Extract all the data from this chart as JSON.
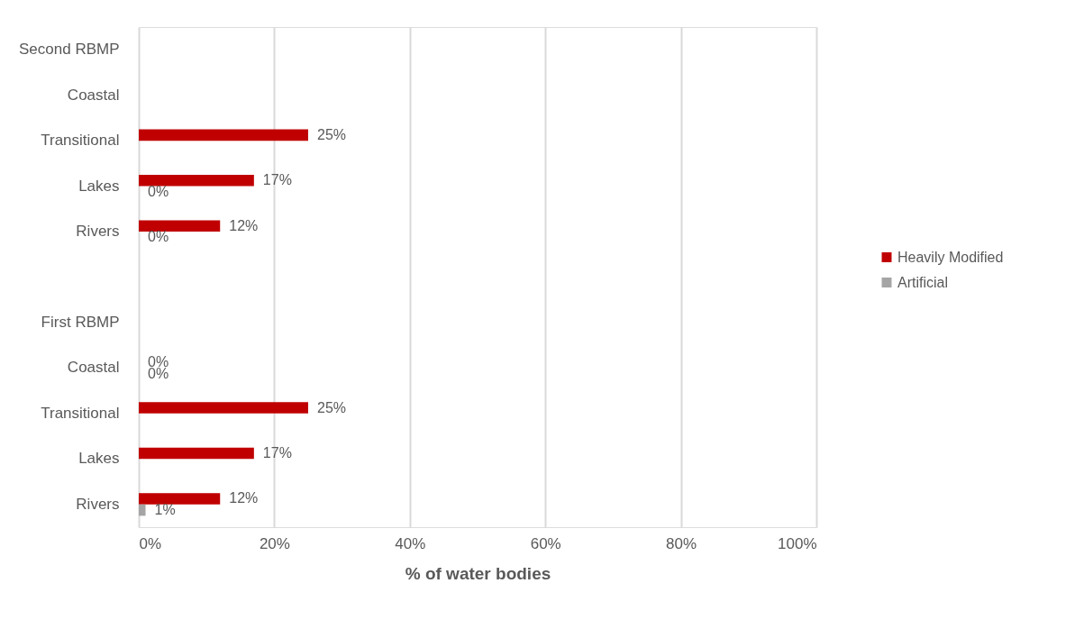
{
  "chart_data": {
    "type": "bar",
    "orientation": "horizontal",
    "xlabel": "% of water bodies",
    "categories": [
      "Second RBMP",
      "Coastal",
      "Transitional",
      "Lakes",
      "Rivers",
      null,
      "First RBMP",
      "Coastal",
      "Transitional",
      "Lakes",
      "Rivers"
    ],
    "series": [
      {
        "name": "Heavily Modified",
        "color": "#c00000",
        "values": [
          null,
          null,
          25,
          17,
          12,
          null,
          null,
          0,
          25,
          17,
          12
        ],
        "value_labels": [
          null,
          null,
          "25%",
          "17%",
          "12%",
          null,
          null,
          "0%",
          "25%",
          "17%",
          "12%"
        ]
      },
      {
        "name": "Artificial",
        "color": "#a5a5a5",
        "values": [
          null,
          null,
          null,
          0,
          0,
          null,
          null,
          0,
          null,
          null,
          1
        ],
        "value_labels": [
          null,
          null,
          null,
          "0%",
          "0%",
          null,
          null,
          "0%",
          null,
          null,
          "1%"
        ]
      }
    ],
    "xlim": [
      0,
      100
    ],
    "xticks": [
      {
        "value": 0,
        "label": "0%"
      },
      {
        "value": 20,
        "label": "20%"
      },
      {
        "value": 40,
        "label": "40%"
      },
      {
        "value": 60,
        "label": "60%"
      },
      {
        "value": 80,
        "label": "80%"
      },
      {
        "value": 100,
        "label": "100%"
      }
    ],
    "grid": "x",
    "legend": "right"
  }
}
